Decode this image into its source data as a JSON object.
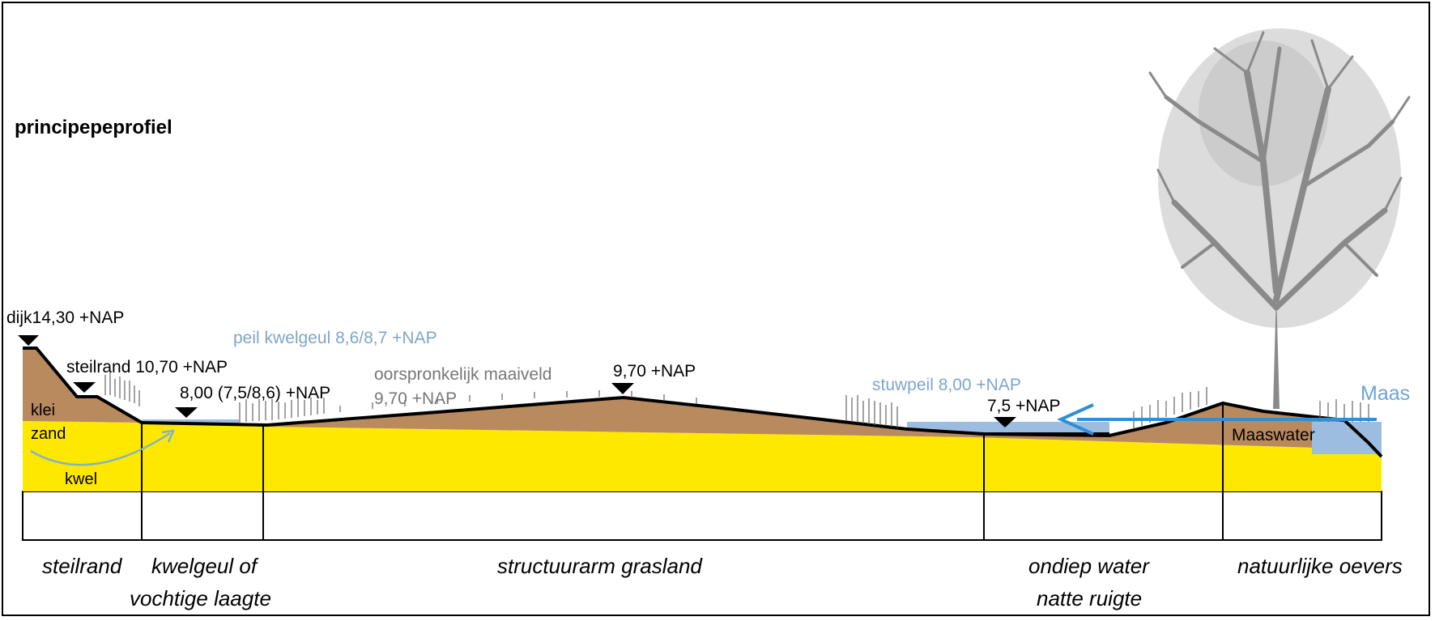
{
  "title": "principepeprofiel",
  "levels": {
    "dijk": "dijk14,30 +NAP",
    "steilrand": "steilrand 10,70 +NAP",
    "peil_kwelgeul": "peil kwelgeul 8,6/8,7 +NAP",
    "kwelgeul": "8,00 (7,5/8,6) +NAP",
    "maaiveld_1": "oorspronkelijk maaiveld",
    "maaiveld_2": "9,70 +NAP",
    "top": "9,70 +NAP",
    "stuwpeil": "stuwpeil 8,00 +NAP",
    "ondiep": "7,5 +NAP"
  },
  "soil": {
    "klei": "klei",
    "zand": "zand",
    "kwel": "kwel"
  },
  "water": {
    "maas": "Maas",
    "maaswater": "Maaswater"
  },
  "zones": [
    {
      "line1": "steilrand",
      "line2": ""
    },
    {
      "line1": "kwelgeul of",
      "line2": "vochtige laagte"
    },
    {
      "line1": "structuurarm grasland",
      "line2": ""
    },
    {
      "line1": "ondiep water",
      "line2": "natte ruigte"
    },
    {
      "line1": "natuurlijke oevers",
      "line2": ""
    }
  ],
  "colors": {
    "clay": "#b98a5e",
    "sand": "#ffe800",
    "water": "#9dbde0",
    "arrow_blue": "#2f8fd6",
    "arrow_kwel": "#7fb3c9",
    "tree": "#8a8a8a"
  },
  "icons": {
    "marker": "level-marker-icon",
    "tree": "tree-icon"
  }
}
